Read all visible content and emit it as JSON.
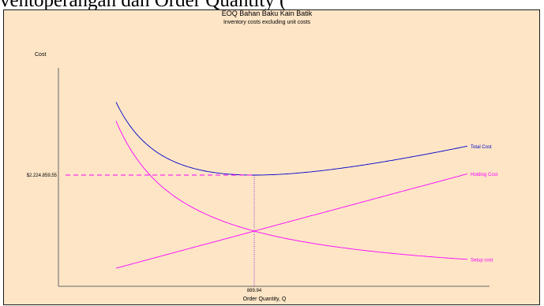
{
  "page": {
    "cropped_heading": "ventoper­angan dan Order Quantity ("
  },
  "chart_data": {
    "type": "line",
    "title": "EOQ Bahan Baku Kain Batik",
    "subtitle": "Inventory costs excluding unit costs",
    "xlabel": "Order Quantity, Q",
    "ylabel": "Cost",
    "optimal_q": 889.94,
    "optimal_q_label": "889.94",
    "min_total_cost": 2224859.55,
    "min_total_cost_label": "$2.224.859,55",
    "x_range": [
      300,
      1800
    ],
    "series": [
      {
        "name": "Total Cost",
        "color": "#0000cc",
        "kind": "total"
      },
      {
        "name": "Holding Cost",
        "color": "#ff00ff",
        "kind": "holding"
      },
      {
        "name": "Setup cost",
        "color": "#ff00ff",
        "kind": "setup"
      }
    ]
  }
}
